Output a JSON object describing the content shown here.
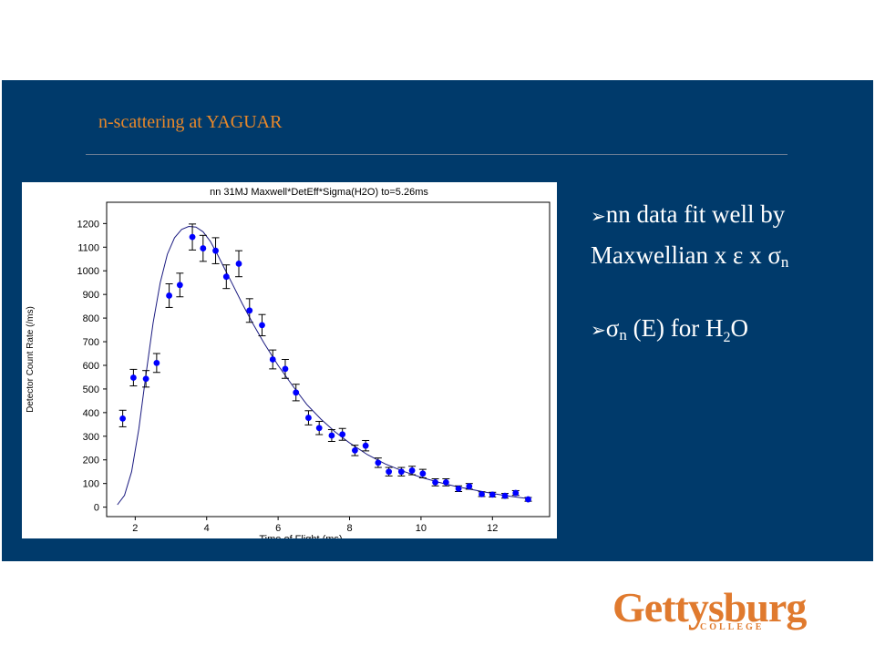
{
  "slide": {
    "title": "n-scattering at YAGUAR",
    "bullets": [
      {
        "line1": "nn data fit well by",
        "line2_text": "Maxwellian x ",
        "epsilon": "ε",
        "x2": " x ",
        "sigma": "σ",
        "sub": "n"
      },
      {
        "sigma": "σ",
        "sub": "n",
        "text_mid": " (E) for H",
        "h2sub": "2",
        "text_end": "O"
      }
    ],
    "logo": {
      "word": "Gettysburg",
      "sub": "COLLEGE"
    },
    "colors": {
      "panel": "#003a6b",
      "title": "#e8882a",
      "logo": "#e07a2e",
      "points": "#0000ff"
    }
  },
  "chart_data": {
    "type": "scatter",
    "title": "nn 31MJ    Maxwell*DetEff*Sigma(H2O)     to=5.26ms",
    "xlabel": "Time of Flight (ms)",
    "ylabel": "Detector Count Rate (/ms)",
    "xlim": [
      1.2,
      13.6
    ],
    "ylim": [
      -40,
      1290
    ],
    "xticks": [
      2,
      4,
      6,
      8,
      10,
      12
    ],
    "yticks": [
      0,
      100,
      200,
      300,
      400,
      500,
      600,
      700,
      800,
      900,
      1000,
      1100,
      1200
    ],
    "points": [
      {
        "x": 1.65,
        "y": 375,
        "err": 35
      },
      {
        "x": 1.95,
        "y": 548,
        "err": 35
      },
      {
        "x": 2.3,
        "y": 543,
        "err": 35
      },
      {
        "x": 2.6,
        "y": 610,
        "err": 40
      },
      {
        "x": 2.95,
        "y": 895,
        "err": 50
      },
      {
        "x": 3.25,
        "y": 940,
        "err": 50
      },
      {
        "x": 3.6,
        "y": 1143,
        "err": 55
      },
      {
        "x": 3.9,
        "y": 1095,
        "err": 55
      },
      {
        "x": 4.25,
        "y": 1085,
        "err": 55
      },
      {
        "x": 4.55,
        "y": 975,
        "err": 50
      },
      {
        "x": 4.9,
        "y": 1030,
        "err": 55
      },
      {
        "x": 5.2,
        "y": 832,
        "err": 50
      },
      {
        "x": 5.55,
        "y": 770,
        "err": 45
      },
      {
        "x": 5.85,
        "y": 625,
        "err": 40
      },
      {
        "x": 6.2,
        "y": 585,
        "err": 40
      },
      {
        "x": 6.5,
        "y": 485,
        "err": 35
      },
      {
        "x": 6.85,
        "y": 378,
        "err": 30
      },
      {
        "x": 7.15,
        "y": 335,
        "err": 28
      },
      {
        "x": 7.5,
        "y": 303,
        "err": 25
      },
      {
        "x": 7.8,
        "y": 308,
        "err": 25
      },
      {
        "x": 8.15,
        "y": 240,
        "err": 22
      },
      {
        "x": 8.45,
        "y": 260,
        "err": 22
      },
      {
        "x": 8.8,
        "y": 188,
        "err": 20
      },
      {
        "x": 9.1,
        "y": 150,
        "err": 18
      },
      {
        "x": 9.45,
        "y": 150,
        "err": 18
      },
      {
        "x": 9.75,
        "y": 155,
        "err": 18
      },
      {
        "x": 10.05,
        "y": 142,
        "err": 18
      },
      {
        "x": 10.4,
        "y": 105,
        "err": 15
      },
      {
        "x": 10.7,
        "y": 105,
        "err": 15
      },
      {
        "x": 11.05,
        "y": 78,
        "err": 12
      },
      {
        "x": 11.35,
        "y": 88,
        "err": 12
      },
      {
        "x": 11.7,
        "y": 55,
        "err": 10
      },
      {
        "x": 12.0,
        "y": 53,
        "err": 10
      },
      {
        "x": 12.35,
        "y": 48,
        "err": 10
      },
      {
        "x": 12.65,
        "y": 60,
        "err": 10
      },
      {
        "x": 13.0,
        "y": 33,
        "err": 8
      }
    ],
    "fit_curve": [
      [
        1.5,
        10
      ],
      [
        1.7,
        50
      ],
      [
        1.9,
        150
      ],
      [
        2.1,
        330
      ],
      [
        2.3,
        560
      ],
      [
        2.5,
        780
      ],
      [
        2.7,
        950
      ],
      [
        2.9,
        1070
      ],
      [
        3.1,
        1140
      ],
      [
        3.3,
        1175
      ],
      [
        3.5,
        1188
      ],
      [
        3.7,
        1185
      ],
      [
        3.9,
        1165
      ],
      [
        4.1,
        1125
      ],
      [
        4.3,
        1070
      ],
      [
        4.5,
        1010
      ],
      [
        4.7,
        950
      ],
      [
        5.0,
        860
      ],
      [
        5.3,
        775
      ],
      [
        5.6,
        695
      ],
      [
        6.0,
        600
      ],
      [
        6.4,
        515
      ],
      [
        6.8,
        435
      ],
      [
        7.2,
        372
      ],
      [
        7.6,
        318
      ],
      [
        8.0,
        272
      ],
      [
        8.5,
        222
      ],
      [
        9.0,
        183
      ],
      [
        9.5,
        152
      ],
      [
        10.0,
        126
      ],
      [
        10.5,
        105
      ],
      [
        11.0,
        87
      ],
      [
        11.5,
        72
      ],
      [
        12.0,
        58
      ],
      [
        12.5,
        46
      ],
      [
        13.0,
        36
      ]
    ]
  }
}
